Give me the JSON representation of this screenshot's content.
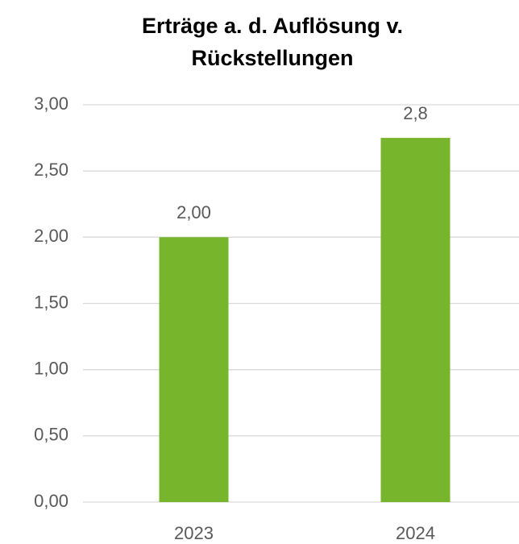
{
  "chart_data": {
    "type": "bar",
    "title": [
      "Erträge a. d. Auflösung v.",
      "Rückstellungen"
    ],
    "categories": [
      "2023",
      "2024"
    ],
    "values": [
      2.0,
      2.75
    ],
    "value_labels": [
      "2,00",
      "2,8"
    ],
    "color": "#77b52c",
    "ylim": [
      0,
      3
    ],
    "yticks": [
      {
        "value": 0,
        "label": "0,00"
      },
      {
        "value": 0.5,
        "label": "0,50"
      },
      {
        "value": 1,
        "label": "1,00"
      },
      {
        "value": 1.5,
        "label": "1,50"
      },
      {
        "value": 2,
        "label": "2,00"
      },
      {
        "value": 2.5,
        "label": "2,50"
      },
      {
        "value": 3,
        "label": "3,00"
      }
    ],
    "grid": true
  }
}
